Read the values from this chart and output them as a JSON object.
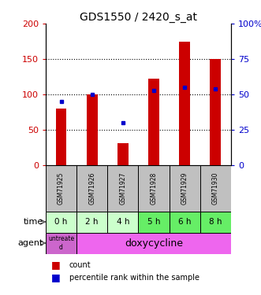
{
  "title": "GDS1550 / 2420_s_at",
  "samples": [
    "GSM71925",
    "GSM71926",
    "GSM71927",
    "GSM71928",
    "GSM71929",
    "GSM71930"
  ],
  "count_values": [
    80,
    100,
    32,
    122,
    175,
    150
  ],
  "percentile_values": [
    45,
    50,
    30,
    53,
    55,
    54
  ],
  "time_labels": [
    "0 h",
    "2 h",
    "4 h",
    "5 h",
    "6 h",
    "8 h"
  ],
  "ylim_left": [
    0,
    200
  ],
  "ylim_right": [
    0,
    100
  ],
  "yticks_left": [
    0,
    50,
    100,
    150,
    200
  ],
  "yticks_right": [
    0,
    25,
    50,
    75,
    100
  ],
  "ytick_labels_right": [
    "0",
    "25",
    "50",
    "75",
    "100%"
  ],
  "bar_color": "#cc0000",
  "dot_color": "#0000cc",
  "sample_bg": "#c0c0c0",
  "time_bg_colors": [
    "#ccffcc",
    "#ccffcc",
    "#ccffcc",
    "#66ee66",
    "#66ee66",
    "#66ee66"
  ],
  "agent_untreated_bg": "#cc66cc",
  "agent_doxy_bg": "#ee66ee",
  "bar_width": 0.35,
  "grid_yticks": [
    50,
    100,
    150
  ]
}
